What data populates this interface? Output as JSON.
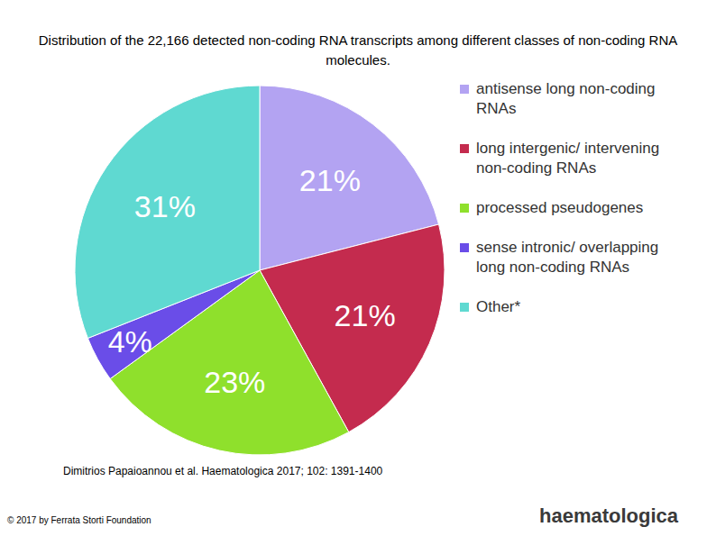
{
  "chart_data": {
    "type": "pie",
    "title": "Distribution of the 22,166 detected non-coding RNA transcripts among different classes of non-coding RNA molecules.",
    "categories": [
      "antisense long non-coding RNAs",
      "long intergenic/ intervening non-coding RNAs",
      "processed pseudogenes",
      "sense intronic/ overlapping long non-coding RNAs",
      "Other*"
    ],
    "values": [
      21,
      21,
      23,
      4,
      31
    ],
    "value_labels": [
      "21%",
      "21%",
      "23%",
      "4%",
      "31%"
    ],
    "colors": [
      "#b3a3f2",
      "#c42b4e",
      "#8fe02c",
      "#6a4de8",
      "#5fd9d1"
    ],
    "data_labels": true,
    "legend": "right"
  },
  "footer": {
    "citation": "Dimitrios Papaioannou et al. Haematologica 2017; 102: 1391-1400",
    "copyright": "© 2017 by Ferrata Storti Foundation",
    "logo": "haematologica"
  }
}
